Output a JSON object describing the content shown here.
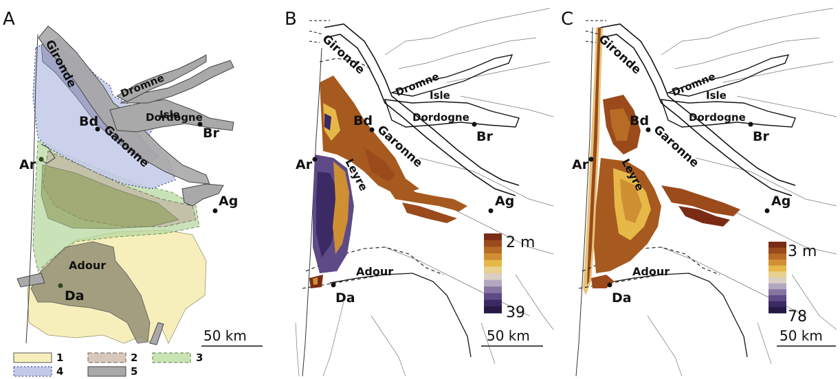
{
  "panels": [
    {
      "letter": "A",
      "scale": "50 km"
    },
    {
      "letter": "B",
      "scale": "50 km",
      "colorbar": {
        "top": "2 m",
        "bottom": "39",
        "colors": [
          "#7a2b14",
          "#9b4a1c",
          "#b86b25",
          "#cf8f33",
          "#e6b848",
          "#e9d08e",
          "#d9cfc4",
          "#b3a7c0",
          "#8674a3",
          "#5e4a86",
          "#3b2a63",
          "#261a45"
        ]
      }
    },
    {
      "letter": "C",
      "scale": "50 km",
      "colorbar": {
        "top": "3 m",
        "bottom": "78",
        "colors": [
          "#7a2b14",
          "#9b4a1c",
          "#b86b25",
          "#cf8f33",
          "#e6b848",
          "#e9d08e",
          "#d9cfc4",
          "#b3a7c0",
          "#8674a3",
          "#5e4a86",
          "#3b2a63",
          "#261a45"
        ]
      }
    }
  ],
  "places": {
    "gironde": "Gironde",
    "dromne": "Dromne",
    "isle": "Isle",
    "dordogne": "Dordogne",
    "bd": "Bd",
    "br": "Br",
    "garonne": "Garonne",
    "ar": "Ar",
    "ag": "Ag",
    "adour": "Adour",
    "da": "Da",
    "leyre": "Leyre"
  },
  "legend": [
    {
      "key": "1",
      "color": "#f6efbb"
    },
    {
      "key": "2",
      "color": "#d8c8bc"
    },
    {
      "key": "3",
      "color": "#c9e3b5"
    },
    {
      "key": "4",
      "color": "#c3c9e8"
    },
    {
      "key": "5",
      "color": "#a9a9a9"
    }
  ]
}
